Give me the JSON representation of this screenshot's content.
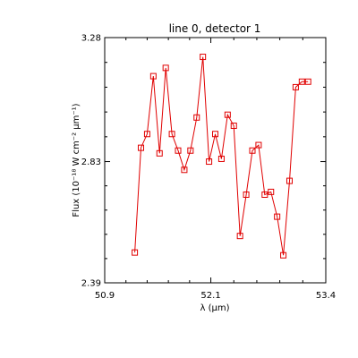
{
  "chart_data": {
    "type": "line",
    "title": "line 0, detector 1",
    "xlabel": "λ (μm)",
    "ylabel": "Flux (10⁻¹⁸ W cm⁻² μm⁻¹)",
    "xlim": [
      50.9,
      53.4
    ],
    "ylim": [
      2.39,
      3.28
    ],
    "xticks": [
      "50.9",
      "52.1",
      "53.4"
    ],
    "yticks": [
      "3.28",
      "2.83",
      "2.39"
    ],
    "grid": false,
    "legend": "none",
    "marker": "open-square",
    "line_color": "#e00000",
    "series": [
      {
        "x": [
          51.24,
          51.31,
          51.38,
          51.45,
          51.52,
          51.59,
          51.66,
          51.73,
          51.8,
          51.87,
          51.94,
          52.01,
          52.08,
          52.15,
          52.22,
          52.29,
          52.36,
          52.43,
          52.5,
          52.57,
          52.64,
          52.71,
          52.78,
          52.85,
          52.92,
          52.99,
          53.06,
          53.13,
          53.2
        ],
        "y": [
          2.5,
          2.88,
          2.93,
          3.14,
          2.86,
          3.17,
          2.93,
          2.87,
          2.8,
          2.87,
          2.99,
          3.21,
          2.83,
          2.93,
          2.84,
          3.0,
          2.96,
          2.56,
          2.71,
          2.87,
          2.89,
          2.71,
          2.72,
          2.63,
          2.49,
          2.76,
          3.1,
          3.12,
          3.12
        ]
      }
    ]
  }
}
